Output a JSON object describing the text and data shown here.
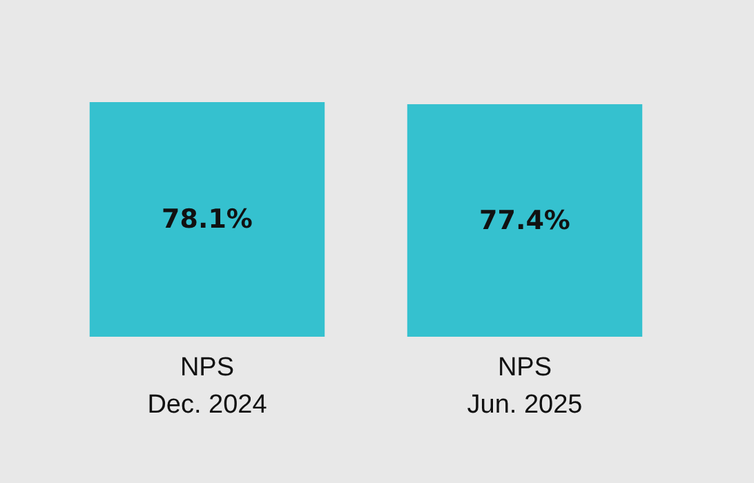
{
  "chart_data": {
    "type": "bar",
    "categories": [
      "NPS\nDec. 2024",
      "NPS\nJun. 2025"
    ],
    "values": [
      78.1,
      77.4
    ],
    "color": "#35c1cf",
    "value_labels": [
      "78.1%",
      "77.4%"
    ]
  }
}
